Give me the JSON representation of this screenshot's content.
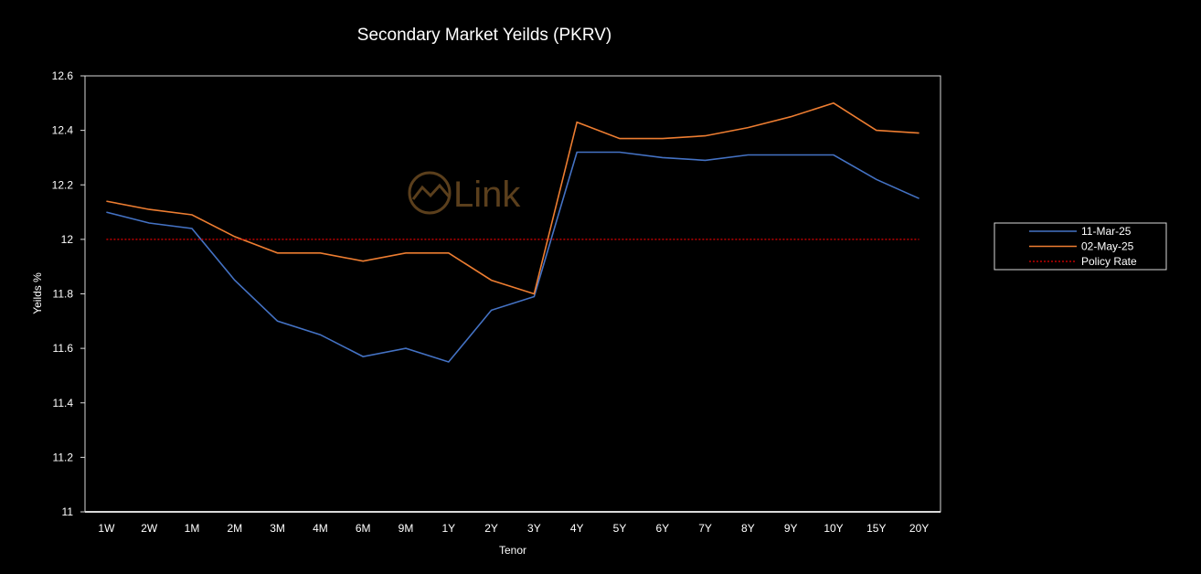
{
  "chart_data": {
    "type": "line",
    "title": "Secondary Market Yeilds (PKRV)",
    "xlabel": "Tenor",
    "ylabel": "Yeilds %",
    "ylim": [
      11,
      12.6
    ],
    "ytick_step": 0.2,
    "yticks": [
      "11",
      "11.2",
      "11.4",
      "11.6",
      "11.8",
      "12",
      "12.2",
      "12.4",
      "12.6"
    ],
    "grid": false,
    "legend_position": "right",
    "categories": [
      "1W",
      "2W",
      "1M",
      "2M",
      "3M",
      "4M",
      "6M",
      "9M",
      "1Y",
      "2Y",
      "3Y",
      "4Y",
      "5Y",
      "6Y",
      "7Y",
      "8Y",
      "9Y",
      "10Y",
      "15Y",
      "20Y"
    ],
    "series": [
      {
        "name": "11-Mar-25",
        "color": "#4472C4",
        "style": "solid",
        "values": [
          12.1,
          12.06,
          12.04,
          11.85,
          11.7,
          11.65,
          11.57,
          11.6,
          11.55,
          11.74,
          11.79,
          12.32,
          12.32,
          12.3,
          12.29,
          12.31,
          12.31,
          12.31,
          12.22,
          12.15
        ]
      },
      {
        "name": "02-May-25",
        "color": "#ED7D31",
        "style": "solid",
        "values": [
          12.14,
          12.11,
          12.09,
          12.01,
          11.95,
          11.95,
          11.92,
          11.95,
          11.95,
          11.85,
          11.8,
          12.43,
          12.37,
          12.37,
          12.38,
          12.41,
          12.45,
          12.5,
          12.4,
          12.39
        ]
      },
      {
        "name": "Policy Rate",
        "color": "#C00000",
        "style": "dotted",
        "values": [
          12,
          12,
          12,
          12,
          12,
          12,
          12,
          12,
          12,
          12,
          12,
          12,
          12,
          12,
          12,
          12,
          12,
          12,
          12,
          12
        ]
      }
    ],
    "watermark": {
      "text": "Link",
      "icon": "chart-circle-logo-icon",
      "color": "#6B4A22"
    }
  }
}
